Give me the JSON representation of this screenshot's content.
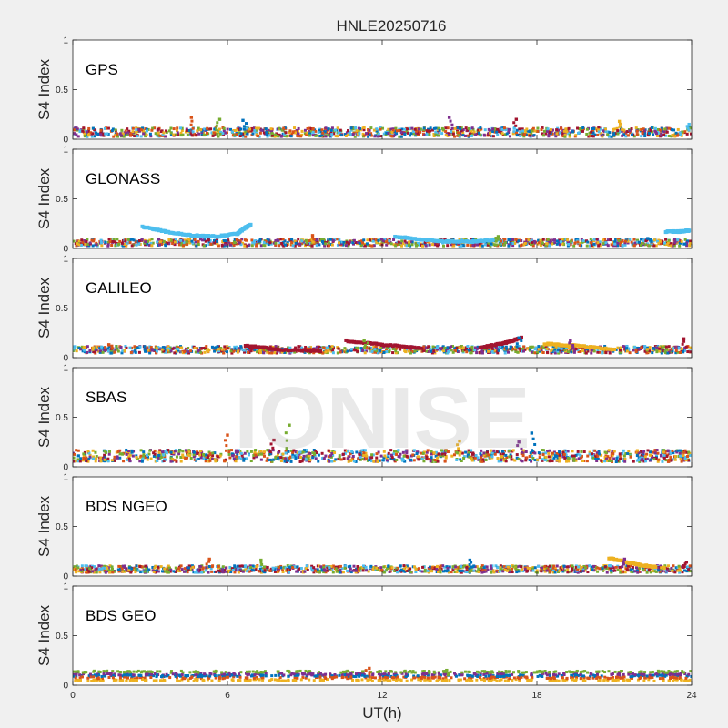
{
  "figure": {
    "title": "HNLE20250716",
    "xlabel": "UT(h)",
    "watermark": "IONISE"
  },
  "chart_data": {
    "type": "scatter",
    "title": "HNLE20250716",
    "xlabel": "UT(h)",
    "ylabel": "S4 Index",
    "xlim": [
      0,
      24
    ],
    "ylim": [
      0,
      1
    ],
    "x_ticks": [
      "0",
      "6",
      "12",
      "18",
      "24"
    ],
    "y_ticks": [
      "0",
      "0.5",
      "1"
    ],
    "grid": false,
    "background": "#f0f0f0",
    "axes_background": "#ffffff",
    "series_colors": [
      "#0072bd",
      "#d95319",
      "#edb120",
      "#7e2f8e",
      "#77ac30",
      "#4dbeee",
      "#a2142f"
    ],
    "panels": [
      {
        "label": "GPS",
        "ylabel": "S4 Index",
        "baseline": 0.07,
        "spread": 0.045,
        "peaks": [
          {
            "x": 4.6,
            "y": 0.22
          },
          {
            "x": 5.7,
            "y": 0.2
          },
          {
            "x": 6.6,
            "y": 0.19
          },
          {
            "x": 14.6,
            "y": 0.22
          },
          {
            "x": 17.2,
            "y": 0.2
          },
          {
            "x": 21.2,
            "y": 0.18
          },
          {
            "x": 23.9,
            "y": 0.15
          }
        ],
        "tracks": []
      },
      {
        "label": "GLONASS",
        "ylabel": "S4 Index",
        "baseline": 0.06,
        "spread": 0.035,
        "peaks": [
          {
            "x": 9.3,
            "y": 0.13
          },
          {
            "x": 16.5,
            "y": 0.12
          },
          {
            "x": 22.3,
            "y": 0.1
          }
        ],
        "tracks": [
          {
            "series": 5,
            "points": [
              [
                2.7,
                0.22
              ],
              [
                3.6,
                0.17
              ],
              [
                4.6,
                0.13
              ],
              [
                5.6,
                0.12
              ],
              [
                6.4,
                0.15
              ],
              [
                6.7,
                0.21
              ],
              [
                6.9,
                0.24
              ]
            ]
          },
          {
            "series": 5,
            "points": [
              [
                12.5,
                0.12
              ],
              [
                13.5,
                0.09
              ],
              [
                14.5,
                0.07
              ],
              [
                15.5,
                0.07
              ],
              [
                16.5,
                0.09
              ]
            ]
          },
          {
            "series": 5,
            "points": [
              [
                23.0,
                0.17
              ],
              [
                23.5,
                0.17
              ],
              [
                23.9,
                0.18
              ]
            ]
          }
        ]
      },
      {
        "label": "GALILEO",
        "ylabel": "S4 Index",
        "baseline": 0.08,
        "spread": 0.035,
        "peaks": [
          {
            "x": 1.4,
            "y": 0.13
          },
          {
            "x": 11.3,
            "y": 0.17
          },
          {
            "x": 17.3,
            "y": 0.2
          },
          {
            "x": 19.3,
            "y": 0.17
          },
          {
            "x": 23.7,
            "y": 0.19
          }
        ],
        "tracks": [
          {
            "series": 6,
            "points": [
              [
                6.7,
                0.12
              ],
              [
                8.0,
                0.08
              ],
              [
                9.6,
                0.07
              ]
            ]
          },
          {
            "series": 6,
            "points": [
              [
                10.6,
                0.17
              ],
              [
                12.0,
                0.13
              ],
              [
                13.5,
                0.1
              ]
            ]
          },
          {
            "series": 6,
            "points": [
              [
                15.8,
                0.1
              ],
              [
                16.8,
                0.15
              ],
              [
                17.4,
                0.2
              ]
            ]
          },
          {
            "series": 2,
            "points": [
              [
                18.3,
                0.14
              ],
              [
                19.5,
                0.12
              ],
              [
                21.0,
                0.08
              ]
            ]
          }
        ]
      },
      {
        "label": "SBAS",
        "ylabel": "S4 Index",
        "baseline": 0.11,
        "spread": 0.06,
        "peaks": [
          {
            "x": 6.0,
            "y": 0.32
          },
          {
            "x": 8.4,
            "y": 0.42
          },
          {
            "x": 17.8,
            "y": 0.34
          },
          {
            "x": 17.3,
            "y": 0.25
          },
          {
            "x": 7.8,
            "y": 0.27
          },
          {
            "x": 15.0,
            "y": 0.26
          }
        ],
        "tracks": []
      },
      {
        "label": "BDS NGEO",
        "ylabel": "S4 Index",
        "baseline": 0.07,
        "spread": 0.035,
        "peaks": [
          {
            "x": 5.3,
            "y": 0.17
          },
          {
            "x": 7.3,
            "y": 0.16
          },
          {
            "x": 15.4,
            "y": 0.16
          },
          {
            "x": 21.4,
            "y": 0.17
          },
          {
            "x": 23.8,
            "y": 0.14
          }
        ],
        "tracks": [
          {
            "series": 2,
            "points": [
              [
                20.8,
                0.18
              ],
              [
                21.8,
                0.12
              ],
              [
                22.6,
                0.09
              ]
            ]
          }
        ]
      },
      {
        "label": "BDS GEO",
        "ylabel": "S4 Index",
        "baseline": 0.09,
        "spread": 0.02,
        "peaks": [
          {
            "x": 11.5,
            "y": 0.17
          },
          {
            "x": 14.5,
            "y": 0.15
          }
        ],
        "tracks": [],
        "bands": [
          {
            "series": 4,
            "y": 0.135
          },
          {
            "series": 3,
            "y": 0.11
          },
          {
            "series": 0,
            "y": 0.095
          },
          {
            "series": 1,
            "y": 0.075
          },
          {
            "series": 2,
            "y": 0.05
          }
        ]
      }
    ]
  }
}
